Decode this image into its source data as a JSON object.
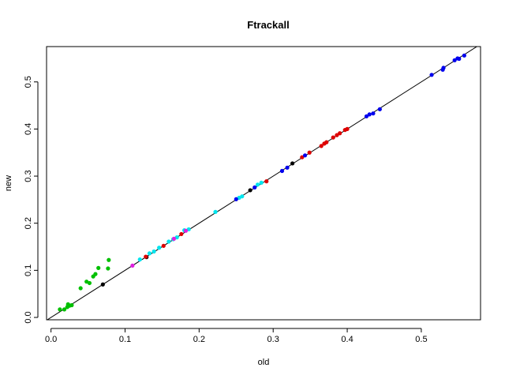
{
  "chart_data": {
    "type": "scatter",
    "title": "Ftrackall",
    "xlabel": "old",
    "ylabel": "new",
    "xlim": [
      -0.006,
      0.58
    ],
    "ylim": [
      -0.005,
      0.575
    ],
    "xticks": [
      "0.0",
      "0.1",
      "0.2",
      "0.3",
      "0.4",
      "0.5"
    ],
    "yticks": [
      "0.0",
      "0.1",
      "0.2",
      "0.3",
      "0.4",
      "0.5"
    ],
    "grid": false,
    "reference_line": {
      "intercept": 0,
      "slope": 1,
      "color": "#000000"
    },
    "series": [
      {
        "color": "#00c000",
        "points": [
          [
            0.012,
            0.017
          ],
          [
            0.018,
            0.017
          ],
          [
            0.022,
            0.022
          ],
          [
            0.023,
            0.028
          ],
          [
            0.025,
            0.025
          ],
          [
            0.028,
            0.026
          ],
          [
            0.04,
            0.062
          ],
          [
            0.048,
            0.076
          ],
          [
            0.052,
            0.073
          ],
          [
            0.057,
            0.087
          ],
          [
            0.06,
            0.092
          ],
          [
            0.064,
            0.105
          ],
          [
            0.077,
            0.104
          ],
          [
            0.078,
            0.122
          ]
        ]
      },
      {
        "color": "#000000",
        "points": [
          [
            0.07,
            0.07
          ],
          [
            0.129,
            0.128
          ],
          [
            0.269,
            0.27
          ],
          [
            0.326,
            0.327
          ]
        ]
      },
      {
        "color": "#00e5ee",
        "points": [
          [
            0.12,
            0.123
          ],
          [
            0.133,
            0.136
          ],
          [
            0.139,
            0.14
          ],
          [
            0.146,
            0.148
          ],
          [
            0.159,
            0.161
          ],
          [
            0.165,
            0.166
          ],
          [
            0.17,
            0.17
          ],
          [
            0.18,
            0.185
          ],
          [
            0.186,
            0.187
          ],
          [
            0.222,
            0.224
          ],
          [
            0.254,
            0.254
          ],
          [
            0.258,
            0.257
          ],
          [
            0.279,
            0.282
          ],
          [
            0.284,
            0.286
          ]
        ]
      },
      {
        "color": "#e020e0",
        "points": [
          [
            0.11,
            0.11
          ],
          [
            0.166,
            0.167
          ],
          [
            0.182,
            0.184
          ]
        ]
      },
      {
        "color": "#dd0000",
        "points": [
          [
            0.128,
            0.129
          ],
          [
            0.152,
            0.152
          ],
          [
            0.176,
            0.177
          ],
          [
            0.291,
            0.289
          ],
          [
            0.339,
            0.34
          ],
          [
            0.349,
            0.35
          ],
          [
            0.365,
            0.364
          ],
          [
            0.369,
            0.369
          ],
          [
            0.372,
            0.372
          ],
          [
            0.381,
            0.382
          ],
          [
            0.386,
            0.387
          ],
          [
            0.39,
            0.391
          ],
          [
            0.397,
            0.398
          ],
          [
            0.4,
            0.4
          ]
        ]
      },
      {
        "color": "#0000ee",
        "points": [
          [
            0.25,
            0.251
          ],
          [
            0.275,
            0.276
          ],
          [
            0.312,
            0.311
          ],
          [
            0.319,
            0.318
          ],
          [
            0.343,
            0.344
          ],
          [
            0.426,
            0.427
          ],
          [
            0.43,
            0.431
          ],
          [
            0.435,
            0.433
          ],
          [
            0.444,
            0.442
          ],
          [
            0.514,
            0.515
          ],
          [
            0.529,
            0.526
          ],
          [
            0.53,
            0.53
          ],
          [
            0.545,
            0.546
          ],
          [
            0.549,
            0.55
          ],
          [
            0.551,
            0.549
          ],
          [
            0.558,
            0.556
          ]
        ]
      }
    ]
  }
}
